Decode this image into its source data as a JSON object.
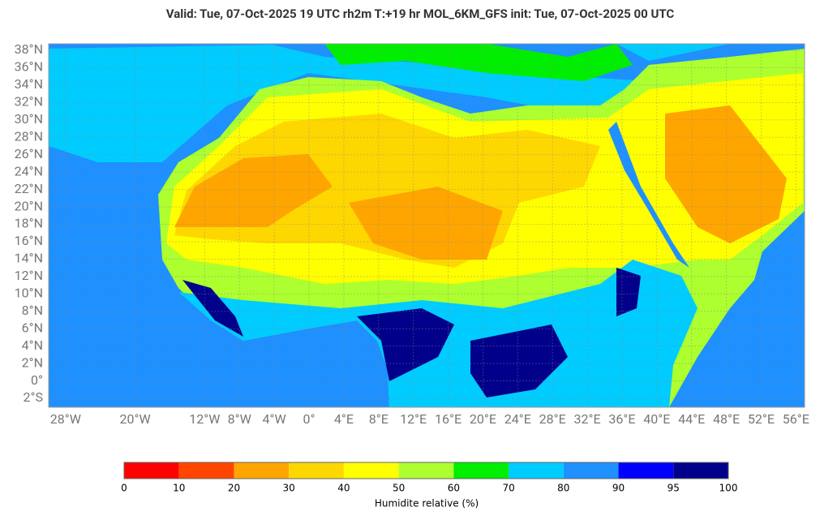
{
  "header": {
    "title": "Valid: Tue, 07-Oct-2025   19 UTC   rh2m   T:+19 hr   MOL_6KM_GFS      init: Tue, 07-Oct-2025   00 UTC"
  },
  "map": {
    "lat_ticks": [
      {
        "value": 38,
        "label": "38°N"
      },
      {
        "value": 36,
        "label": "36°N"
      },
      {
        "value": 34,
        "label": "34°N"
      },
      {
        "value": 32,
        "label": "32°N"
      },
      {
        "value": 30,
        "label": "30°N"
      },
      {
        "value": 28,
        "label": "28°N"
      },
      {
        "value": 26,
        "label": "26°N"
      },
      {
        "value": 24,
        "label": "24°N"
      },
      {
        "value": 22,
        "label": "22°N"
      },
      {
        "value": 20,
        "label": "20°N"
      },
      {
        "value": 18,
        "label": "18°N"
      },
      {
        "value": 16,
        "label": "16°N"
      },
      {
        "value": 14,
        "label": "14°N"
      },
      {
        "value": 12,
        "label": "12°N"
      },
      {
        "value": 10,
        "label": "10°N"
      },
      {
        "value": 8,
        "label": "8°N"
      },
      {
        "value": 6,
        "label": "6°N"
      },
      {
        "value": 4,
        "label": "4°N"
      },
      {
        "value": 2,
        "label": "2°N"
      },
      {
        "value": 0,
        "label": "0°"
      },
      {
        "value": -2,
        "label": "2°S"
      }
    ],
    "lon_ticks": [
      {
        "value": -28,
        "label": "28°W"
      },
      {
        "value": -20,
        "label": "20°W"
      },
      {
        "value": -12,
        "label": "12°W"
      },
      {
        "value": -8,
        "label": "8°W"
      },
      {
        "value": -4,
        "label": "4°W"
      },
      {
        "value": 0,
        "label": "0°"
      },
      {
        "value": 4,
        "label": "4°E"
      },
      {
        "value": 8,
        "label": "8°E"
      },
      {
        "value": 12,
        "label": "12°E"
      },
      {
        "value": 16,
        "label": "16°E"
      },
      {
        "value": 20,
        "label": "20°E"
      },
      {
        "value": 24,
        "label": "24°E"
      },
      {
        "value": 28,
        "label": "28°E"
      },
      {
        "value": 32,
        "label": "32°E"
      },
      {
        "value": 36,
        "label": "36°E"
      },
      {
        "value": 40,
        "label": "40°E"
      },
      {
        "value": 44,
        "label": "44°E"
      },
      {
        "value": 48,
        "label": "48°E"
      },
      {
        "value": 52,
        "label": "52°E"
      },
      {
        "value": 56,
        "label": "56°E"
      }
    ]
  },
  "colorbar": {
    "label": "Humidite relative (%)",
    "ticks": [
      0,
      10,
      20,
      30,
      40,
      50,
      60,
      70,
      80,
      90,
      95,
      100
    ],
    "colors": [
      "#ff0000",
      "#ff4500",
      "#ffa500",
      "#ffd700",
      "#ffff00",
      "#adff2f",
      "#00ee00",
      "#00ccff",
      "#1e90ff",
      "#0000ff",
      "#00008b"
    ]
  }
}
